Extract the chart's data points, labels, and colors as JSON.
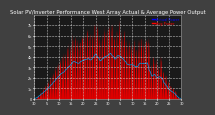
{
  "title": "Solar PV/Inverter Performance West Array Actual & Average Power Output",
  "bg_color": "#404040",
  "plot_bg_color": "#1a1a1a",
  "grid_color": "#ffffff",
  "fill_color": "#dd0000",
  "line_color": "#dd0000",
  "avg_line_color": "#00aaff",
  "legend_actual_color": "#0000ff",
  "legend_avg_color": "#ff0000",
  "ylim": [
    0,
    8
  ],
  "ylabel_ticks": [
    "0",
    "1k",
    "2k",
    "3k",
    "4k",
    "5k",
    "6k",
    "7k"
  ],
  "legend_actual": "Actual Power",
  "legend_avg": "Avg Power",
  "title_fontsize": 3.8,
  "tick_fontsize": 2.5,
  "num_points": 400
}
